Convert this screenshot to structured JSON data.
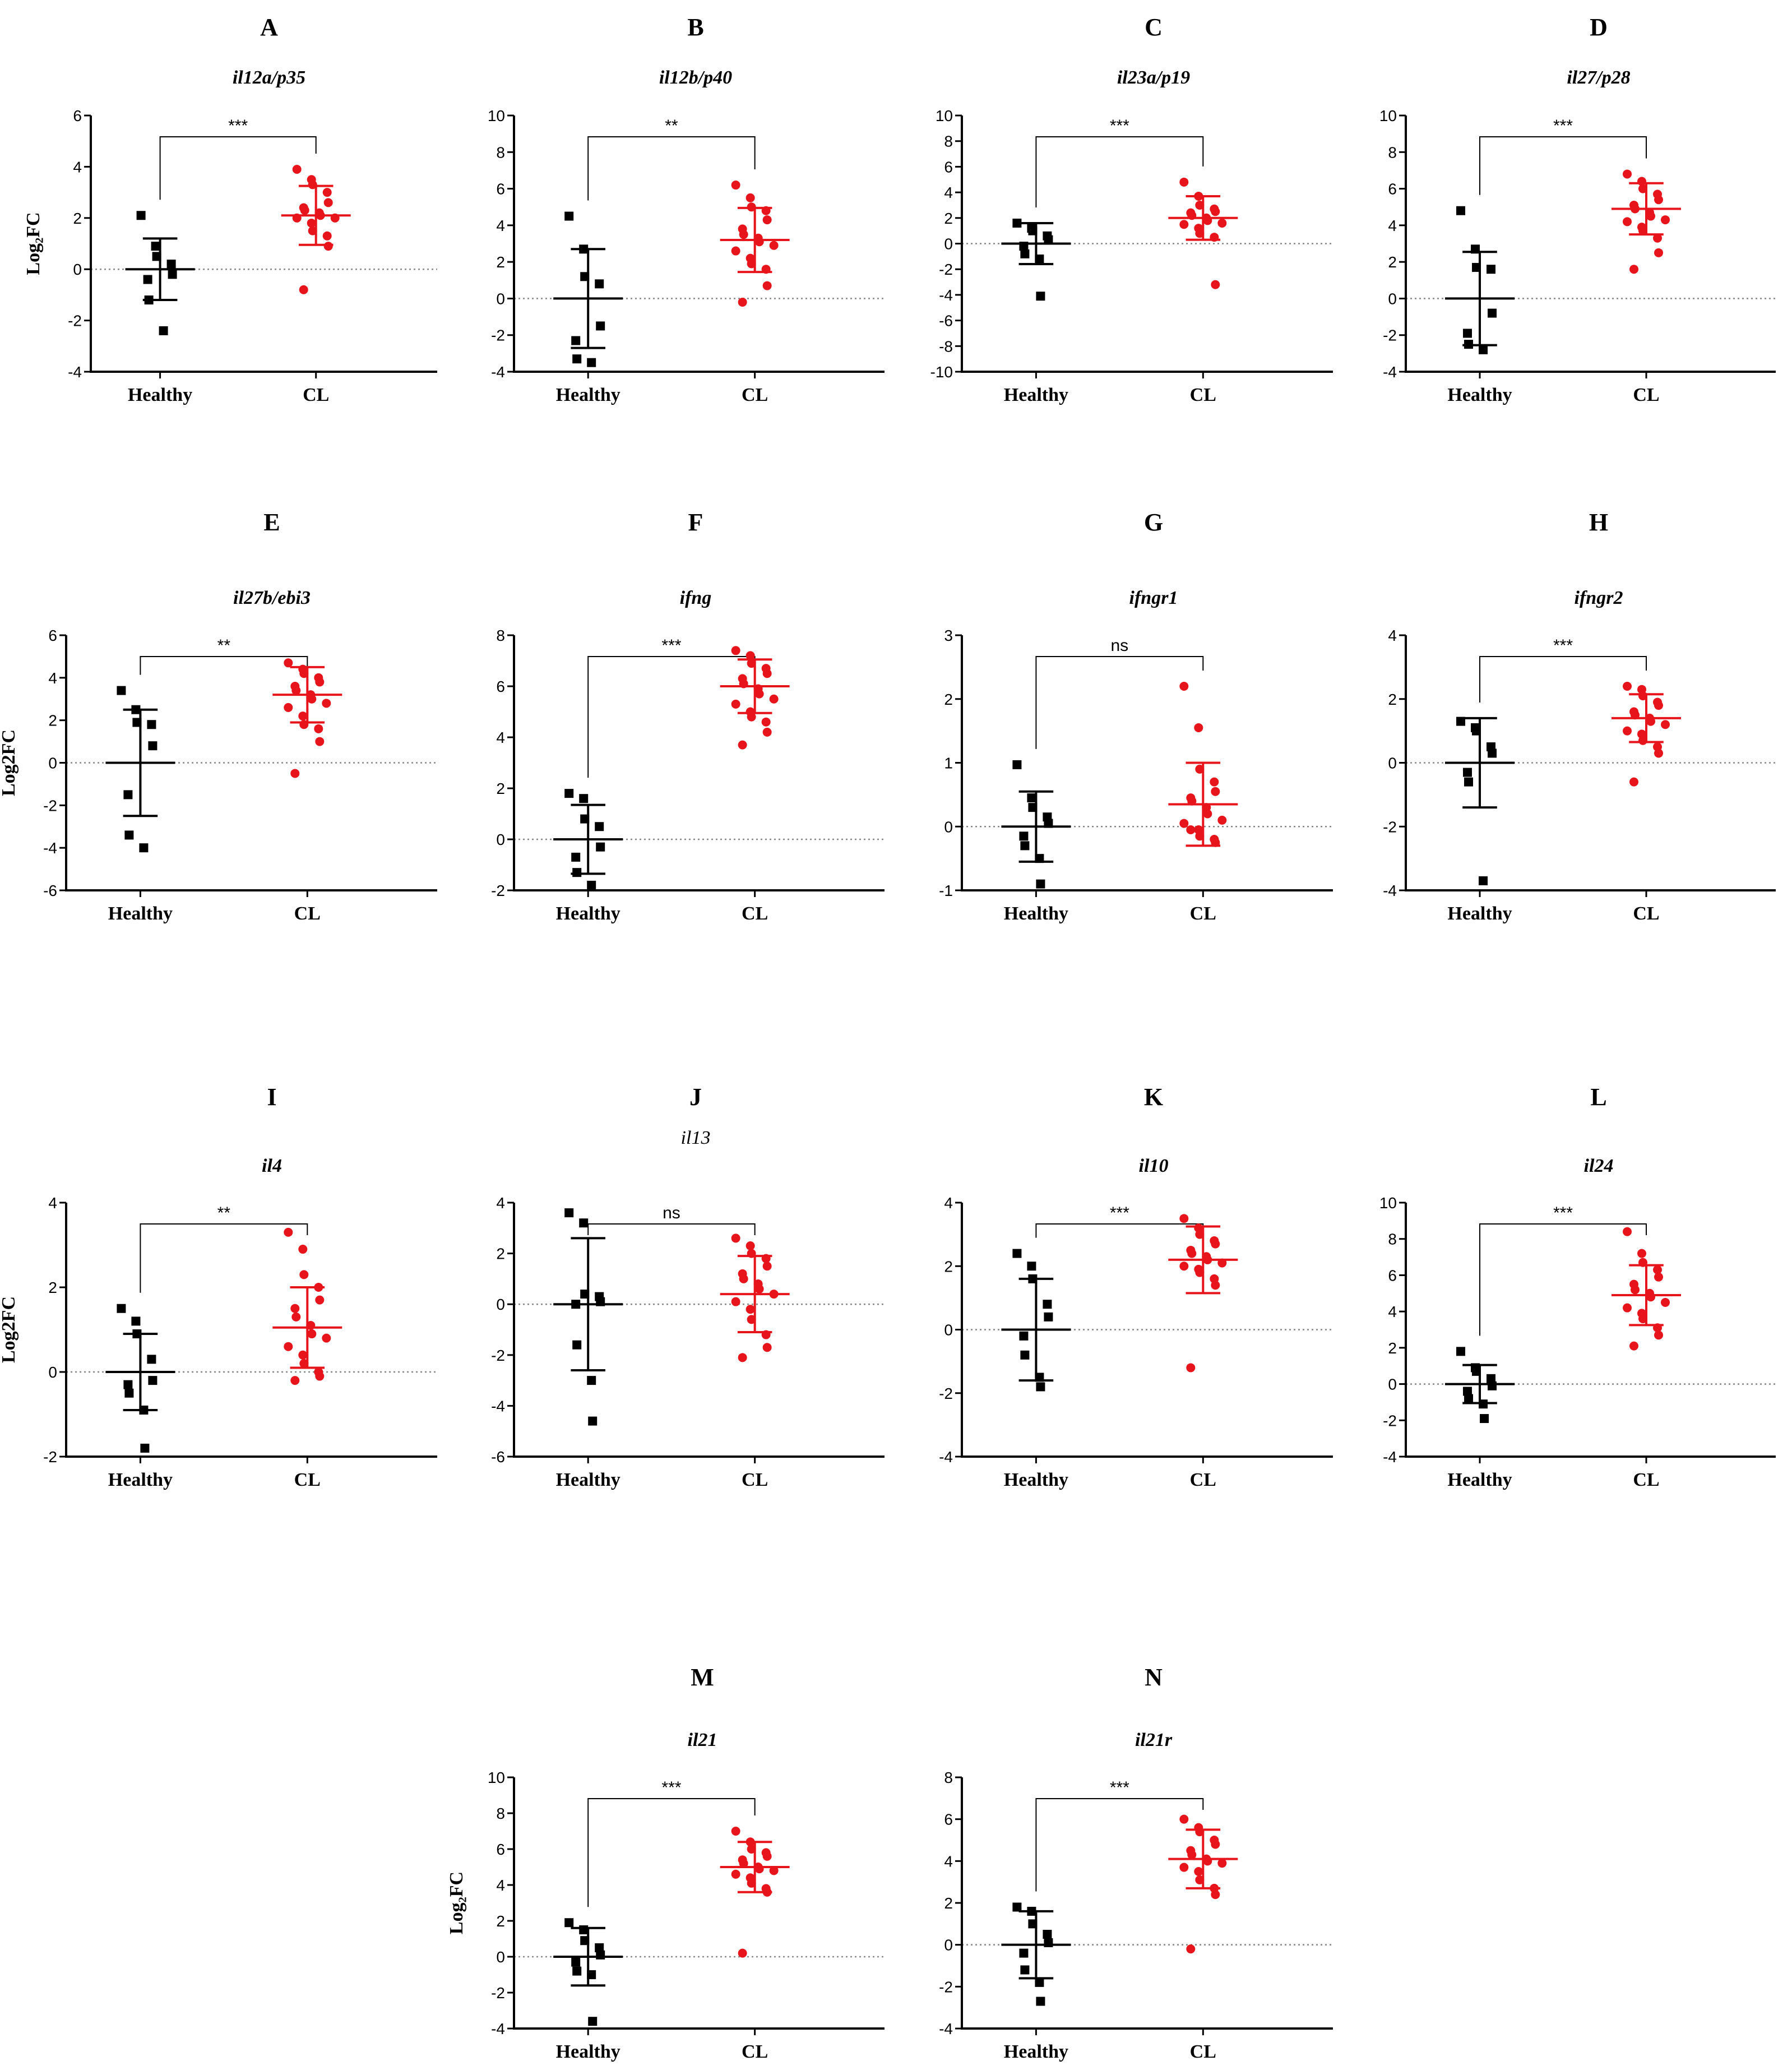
{
  "figure": {
    "categories": [
      "Healthy",
      "CL"
    ],
    "colors": {
      "healthy": "#000000",
      "cl": "#e8141b",
      "axis": "#000000",
      "zero_line": "#888888"
    }
  },
  "chart_data": [
    {
      "panel": "A",
      "type": "scatter",
      "title": "il12a/p35",
      "ylabel": "Log₂FC",
      "ylim": [
        -4,
        6
      ],
      "yticks": [
        -4,
        -2,
        0,
        2,
        4,
        6
      ],
      "significance": "***",
      "healthy": {
        "mean": 0,
        "sd": 1.2,
        "points": [
          2.1,
          0.9,
          0.5,
          0.2,
          -0.2,
          -0.4,
          -1.2,
          -2.4
        ]
      },
      "cl": {
        "mean": 2.1,
        "sd": 1.15,
        "points": [
          3.9,
          3.5,
          3.3,
          3.0,
          2.6,
          2.4,
          2.3,
          2.2,
          2.1,
          2.0,
          2.0,
          1.8,
          1.5,
          1.3,
          0.9,
          -0.8
        ]
      }
    },
    {
      "panel": "B",
      "type": "scatter",
      "title": "il12b/p40",
      "ylabel": "",
      "ylim": [
        -4,
        10
      ],
      "yticks": [
        -4,
        -2,
        0,
        2,
        4,
        6,
        8,
        10
      ],
      "significance": "**",
      "healthy": {
        "mean": 0,
        "sd": 2.7,
        "points": [
          4.5,
          2.7,
          1.2,
          0.8,
          -1.5,
          -2.3,
          -3.3,
          -3.5
        ]
      },
      "cl": {
        "mean": 3.2,
        "sd": 1.75,
        "points": [
          6.2,
          5.5,
          5.0,
          4.8,
          4.3,
          3.8,
          3.5,
          3.3,
          3.1,
          2.9,
          2.6,
          2.2,
          1.9,
          1.6,
          0.7,
          -0.2
        ]
      }
    },
    {
      "panel": "C",
      "type": "scatter",
      "title": "il23a/p19",
      "ylabel": "",
      "ylim": [
        -10,
        10
      ],
      "yticks": [
        -10,
        -8,
        -6,
        -4,
        -2,
        0,
        2,
        4,
        6,
        8,
        10
      ],
      "significance": "***",
      "healthy": {
        "mean": 0,
        "sd": 1.6,
        "points": [
          1.6,
          1.2,
          1.0,
          0.6,
          0.3,
          -0.2,
          -0.8,
          -1.2,
          -4.1
        ]
      },
      "cl": {
        "mean": 2.0,
        "sd": 1.7,
        "points": [
          4.8,
          3.7,
          3.0,
          2.7,
          2.5,
          2.4,
          2.2,
          2.0,
          1.8,
          1.6,
          1.5,
          1.2,
          0.8,
          0.5,
          -3.2
        ]
      }
    },
    {
      "panel": "D",
      "type": "scatter",
      "title": "il27/p28",
      "ylabel": "",
      "ylim": [
        -4,
        10
      ],
      "yticks": [
        -4,
        -2,
        0,
        2,
        4,
        6,
        8,
        10
      ],
      "significance": "***",
      "healthy": {
        "mean": 0,
        "sd": 2.55,
        "points": [
          4.8,
          2.7,
          1.7,
          1.6,
          -0.8,
          -1.9,
          -2.5,
          -2.8
        ]
      },
      "cl": {
        "mean": 4.9,
        "sd": 1.4,
        "points": [
          6.8,
          6.4,
          6.0,
          5.7,
          5.4,
          5.1,
          4.9,
          4.7,
          4.5,
          4.3,
          4.2,
          3.9,
          3.7,
          3.3,
          2.5,
          1.6
        ]
      }
    },
    {
      "panel": "E",
      "type": "scatter",
      "title": "il27b/ebi3",
      "ylabel": "Log2FC",
      "ylim": [
        -6,
        6
      ],
      "yticks": [
        -6,
        -4,
        -2,
        0,
        2,
        4,
        6
      ],
      "significance": "**",
      "healthy": {
        "mean": 0,
        "sd": 2.5,
        "points": [
          3.4,
          2.5,
          1.9,
          1.8,
          0.8,
          -1.5,
          -3.4,
          -4.0
        ]
      },
      "cl": {
        "mean": 3.2,
        "sd": 1.3,
        "points": [
          4.7,
          4.4,
          4.2,
          4.0,
          3.8,
          3.6,
          3.4,
          3.2,
          3.0,
          2.8,
          2.6,
          2.2,
          1.8,
          1.6,
          1.0,
          -0.5
        ]
      }
    },
    {
      "panel": "F",
      "type": "scatter",
      "title": "ifng",
      "ylabel": "",
      "ylim": [
        -2,
        8
      ],
      "yticks": [
        -2,
        0,
        2,
        4,
        6,
        8
      ],
      "significance": "***",
      "healthy": {
        "mean": 0,
        "sd": 1.35,
        "points": [
          1.8,
          1.6,
          0.8,
          0.5,
          -0.3,
          -0.7,
          -1.3,
          -1.8
        ]
      },
      "cl": {
        "mean": 6.0,
        "sd": 1.05,
        "points": [
          7.4,
          7.2,
          6.9,
          6.7,
          6.5,
          6.3,
          6.1,
          5.9,
          5.7,
          5.5,
          5.3,
          5.0,
          4.8,
          4.6,
          4.2,
          3.7
        ]
      }
    },
    {
      "panel": "G",
      "type": "scatter",
      "title": "ifngr1",
      "ylabel": "",
      "ylim": [
        -1,
        3
      ],
      "yticks": [
        -1,
        0,
        1,
        2,
        3
      ],
      "significance": "ns",
      "healthy": {
        "mean": 0,
        "sd": 0.55,
        "points": [
          0.97,
          0.45,
          0.3,
          0.15,
          0.05,
          -0.15,
          -0.3,
          -0.5,
          -0.9
        ]
      },
      "cl": {
        "mean": 0.35,
        "sd": 0.65,
        "points": [
          2.2,
          1.55,
          0.9,
          0.7,
          0.55,
          0.45,
          0.4,
          0.3,
          0.2,
          0.1,
          0.05,
          -0.05,
          -0.15,
          -0.2,
          -0.25,
          -0.05
        ]
      }
    },
    {
      "panel": "H",
      "type": "scatter",
      "title": "ifngr2",
      "ylabel": "",
      "ylim": [
        -4,
        4
      ],
      "yticks": [
        -4,
        -2,
        0,
        2,
        4
      ],
      "significance": "***",
      "healthy": {
        "mean": 0,
        "sd": 1.4,
        "points": [
          1.3,
          1.1,
          1.0,
          0.5,
          0.3,
          -0.3,
          -0.6,
          -3.7
        ]
      },
      "cl": {
        "mean": 1.4,
        "sd": 0.75,
        "points": [
          2.4,
          2.3,
          2.1,
          1.9,
          1.8,
          1.6,
          1.5,
          1.4,
          1.3,
          1.2,
          1.0,
          0.9,
          0.7,
          0.5,
          0.3,
          -0.6
        ]
      }
    },
    {
      "panel": "I",
      "type": "scatter",
      "title": "il4",
      "ylabel": "Log2FC",
      "ylim": [
        -2,
        4
      ],
      "yticks": [
        -2,
        0,
        2,
        4
      ],
      "significance": "**",
      "healthy": {
        "mean": 0,
        "sd": 0.9,
        "points": [
          1.5,
          1.2,
          0.9,
          0.3,
          -0.2,
          -0.3,
          -0.5,
          -0.9,
          -1.8
        ]
      },
      "cl": {
        "mean": 1.05,
        "sd": 0.95,
        "points": [
          3.3,
          2.9,
          2.3,
          2.0,
          1.7,
          1.5,
          1.3,
          1.1,
          0.9,
          0.8,
          0.6,
          0.4,
          0.2,
          0.0,
          -0.1,
          -0.2
        ]
      }
    },
    {
      "panel": "J",
      "type": "scatter",
      "title": "il13",
      "ylabel": "",
      "ylim": [
        -6,
        4
      ],
      "yticks": [
        -6,
        -4,
        -2,
        0,
        2,
        4
      ],
      "significance": "ns",
      "healthy": {
        "mean": 0,
        "sd": 2.6,
        "points": [
          3.6,
          3.2,
          0.4,
          0.3,
          0.1,
          0.0,
          -1.6,
          -3.0,
          -4.6
        ]
      },
      "cl": {
        "mean": 0.4,
        "sd": 1.5,
        "points": [
          2.6,
          2.3,
          2.0,
          1.8,
          1.5,
          1.2,
          1.0,
          0.8,
          0.6,
          0.4,
          0.1,
          -0.2,
          -0.6,
          -1.2,
          -1.7,
          -2.1
        ]
      }
    },
    {
      "panel": "K",
      "type": "scatter",
      "title": "il10",
      "ylabel": "",
      "ylim": [
        -4,
        4
      ],
      "yticks": [
        -4,
        -2,
        0,
        2,
        4
      ],
      "significance": "***",
      "healthy": {
        "mean": 0,
        "sd": 1.6,
        "points": [
          2.4,
          2.0,
          1.6,
          0.8,
          0.4,
          -0.2,
          -0.8,
          -1.5,
          -1.8
        ]
      },
      "cl": {
        "mean": 2.2,
        "sd": 1.05,
        "points": [
          3.5,
          3.2,
          3.0,
          2.8,
          2.7,
          2.5,
          2.4,
          2.3,
          2.2,
          2.1,
          2.0,
          1.9,
          1.8,
          1.6,
          1.4,
          -1.2
        ]
      }
    },
    {
      "panel": "L",
      "type": "scatter",
      "title": "il24",
      "ylabel": "",
      "ylim": [
        -4,
        10
      ],
      "yticks": [
        -4,
        -2,
        0,
        2,
        4,
        6,
        8,
        10
      ],
      "significance": "***",
      "healthy": {
        "mean": 0,
        "sd": 1.05,
        "points": [
          1.8,
          0.9,
          0.7,
          0.3,
          -0.1,
          -0.4,
          -0.8,
          -1.1,
          -1.9
        ]
      },
      "cl": {
        "mean": 4.9,
        "sd": 1.65,
        "points": [
          8.4,
          7.2,
          6.7,
          6.3,
          5.9,
          5.5,
          5.2,
          5.0,
          4.8,
          4.5,
          4.2,
          3.9,
          3.6,
          3.1,
          2.7,
          2.1
        ]
      }
    },
    {
      "panel": "M",
      "type": "scatter",
      "title": "il21",
      "ylabel": "Log₂FC",
      "ylim": [
        -4,
        10
      ],
      "yticks": [
        -4,
        -2,
        0,
        2,
        4,
        6,
        8,
        10
      ],
      "significance": "***",
      "healthy": {
        "mean": 0,
        "sd": 1.6,
        "points": [
          1.9,
          1.5,
          0.9,
          0.5,
          0.1,
          -0.3,
          -0.8,
          -1.0,
          -3.6
        ]
      },
      "cl": {
        "mean": 5.0,
        "sd": 1.4,
        "points": [
          7.0,
          6.4,
          6.0,
          5.8,
          5.6,
          5.4,
          5.2,
          5.0,
          4.9,
          4.8,
          4.6,
          4.4,
          4.1,
          3.8,
          3.6,
          0.2
        ]
      }
    },
    {
      "panel": "N",
      "type": "scatter",
      "title": "il21r",
      "ylabel": "",
      "ylim": [
        -4,
        8
      ],
      "yticks": [
        -4,
        -2,
        0,
        2,
        4,
        6,
        8
      ],
      "significance": "***",
      "healthy": {
        "mean": 0,
        "sd": 1.6,
        "points": [
          1.8,
          1.6,
          1.0,
          0.5,
          0.1,
          -0.4,
          -1.2,
          -1.8,
          -2.7
        ]
      },
      "cl": {
        "mean": 4.1,
        "sd": 1.4,
        "points": [
          6.0,
          5.6,
          5.4,
          5.0,
          4.8,
          4.5,
          4.3,
          4.1,
          4.0,
          3.9,
          3.7,
          3.5,
          3.1,
          2.7,
          2.4,
          -0.2
        ]
      }
    }
  ]
}
